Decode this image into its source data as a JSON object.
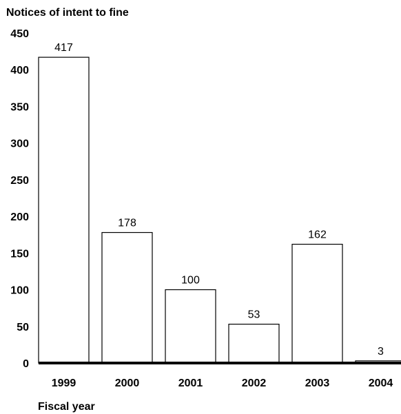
{
  "chart_data": {
    "type": "bar",
    "title": "",
    "ylabel": "Notices of intent to fine",
    "xlabel": "Fiscal year",
    "categories": [
      "1999",
      "2000",
      "2001",
      "2002",
      "2003",
      "2004"
    ],
    "values": [
      417,
      178,
      100,
      53,
      162,
      3
    ],
    "data_labels": [
      "417",
      "178",
      "100",
      "53",
      "162",
      "3"
    ],
    "ylim": [
      0,
      450
    ],
    "yticks": [
      0,
      50,
      100,
      150,
      200,
      250,
      300,
      350,
      400,
      450
    ],
    "ytick_labels": [
      "0",
      "50",
      "100",
      "150",
      "200",
      "250",
      "300",
      "350",
      "400",
      "450"
    ],
    "grid": false,
    "legend": "none",
    "colors": {
      "bar_fill": "#ffffff",
      "bar_stroke": "#000000",
      "baseline": "#000000"
    }
  }
}
